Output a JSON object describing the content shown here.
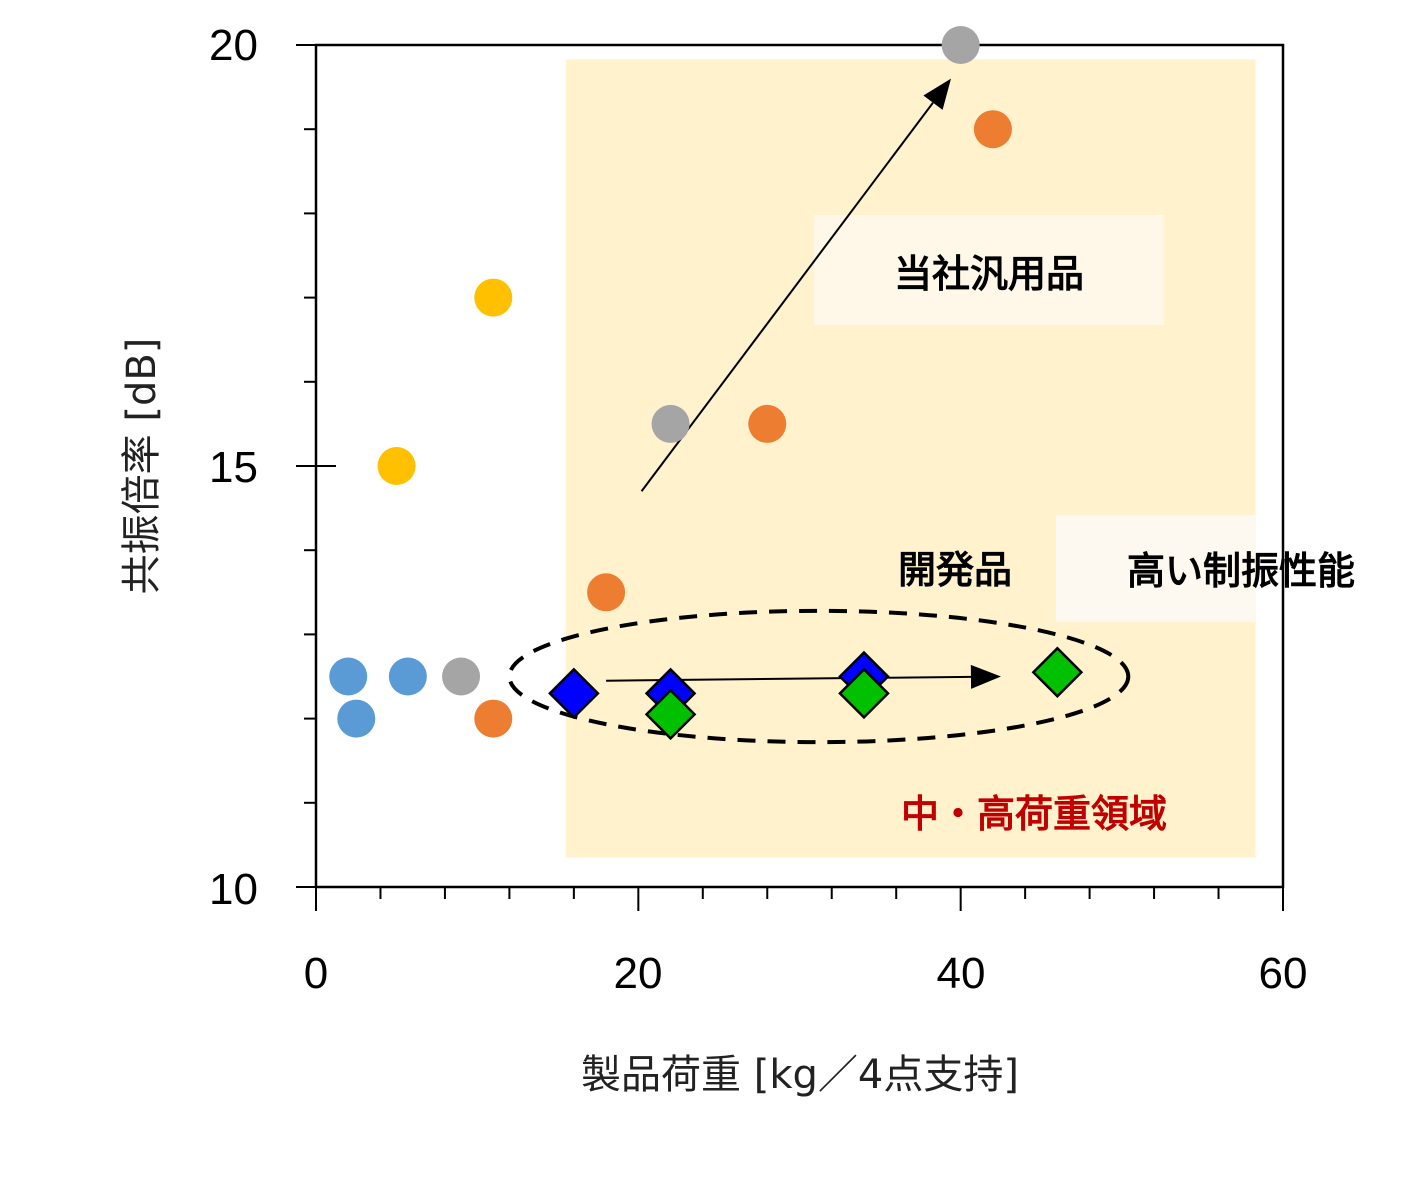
{
  "chart_data": {
    "type": "scatter",
    "title": "",
    "xlabel": "製品荷重 [kg／4点支持]",
    "ylabel": "共振倍率 [dB]",
    "xlim": [
      0,
      60
    ],
    "ylim": [
      10,
      20
    ],
    "x_ticks": [
      "0",
      "20",
      "40",
      "60"
    ],
    "y_ticks": [
      "10",
      "15",
      "20"
    ],
    "grid": false,
    "legend": "none",
    "series": [
      {
        "marker": "circle",
        "color": "#5b9bd5",
        "points": [
          [
            2,
            12.5
          ],
          [
            2.5,
            12
          ],
          [
            5.7,
            12.5
          ]
        ]
      },
      {
        "marker": "circle",
        "color": "#ffc000",
        "points": [
          [
            5,
            15
          ],
          [
            11,
            17
          ]
        ]
      },
      {
        "marker": "circle",
        "color": "#a5a5a5",
        "points": [
          [
            9,
            12.5
          ],
          [
            22,
            15.5
          ],
          [
            40,
            20
          ]
        ]
      },
      {
        "marker": "circle",
        "color": "#ed7d31",
        "points": [
          [
            11,
            12
          ],
          [
            18,
            13.5
          ],
          [
            28,
            15.5
          ],
          [
            42,
            19
          ]
        ]
      },
      {
        "marker": "diamond",
        "color": "#0000ff",
        "points": [
          [
            16,
            12.3
          ],
          [
            22,
            12.3
          ],
          [
            34,
            12.5
          ]
        ]
      },
      {
        "marker": "diamond",
        "color": "#00c000",
        "points": [
          [
            22,
            12.05
          ],
          [
            34,
            12.3
          ],
          [
            46,
            12.55
          ]
        ]
      }
    ],
    "highlight_region": {
      "x": [
        15.5,
        58.3
      ],
      "y": [
        10.35,
        19.83
      ],
      "color": "#fff2cc"
    },
    "annotations": {
      "general": "当社汎用品",
      "developed": "開発品",
      "high_damping": "高い制振性能",
      "region": "中・高荷重領域"
    },
    "arrows": [
      {
        "from": [
          20.2,
          14.7
        ],
        "to": [
          39.4,
          19.6
        ]
      },
      {
        "from": [
          18,
          12.45
        ],
        "to": [
          42.5,
          12.5
        ]
      }
    ],
    "ellipse": {
      "cx": 31.2,
      "cy": 12.5,
      "rx": 19.2,
      "ry": 0.78
    }
  }
}
